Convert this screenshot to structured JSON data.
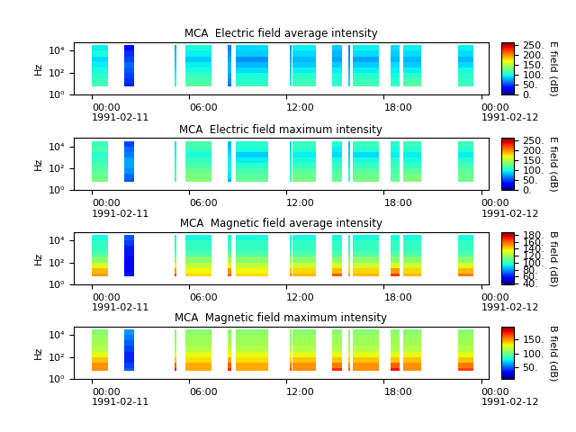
{
  "chart_data": [
    {
      "type": "heatmap",
      "title": "MCA  Electric field average intensity",
      "y_label": "Hz",
      "log": "y",
      "xlim": [
        -1.1,
        24.45
      ],
      "xticks": [
        {
          "value": 0,
          "label": "00:00\n1991-02-11"
        },
        {
          "value": 6,
          "label": "06:00"
        },
        {
          "value": 12,
          "label": "12:00"
        },
        {
          "value": 18,
          "label": "18:00"
        },
        {
          "value": 24,
          "label": "00:00\n1991-02-12"
        }
      ],
      "ylim": [
        1,
        60000
      ],
      "yticks": [
        {
          "value": 1,
          "label": "10⁰"
        },
        {
          "value": 100,
          "label": "10²"
        },
        {
          "value": 10000,
          "label": "10⁴"
        }
      ],
      "segments": [
        [
          0.0,
          1.0
        ],
        [
          2.0,
          2.6
        ],
        [
          5.1,
          5.2
        ],
        [
          5.8,
          7.4
        ],
        [
          8.4,
          8.6
        ],
        [
          8.9,
          10.9
        ],
        [
          12.2,
          12.3
        ],
        [
          12.4,
          13.8
        ],
        [
          14.8,
          15.4
        ],
        [
          15.8,
          15.9
        ],
        [
          16.1,
          17.7
        ],
        [
          18.4,
          19.0
        ],
        [
          19.2,
          20.3
        ],
        [
          22.6,
          23.5
        ]
      ],
      "y_edges": [
        5.6,
        10,
        31.6,
        100,
        316,
        1000,
        3162,
        10000,
        31623
      ],
      "cells": [
        [
          115,
          110,
          105,
          100,
          95,
          90,
          100,
          95
        ],
        [
          40,
          45,
          50,
          55,
          60,
          50,
          45,
          35
        ],
        [
          100,
          100,
          95,
          90,
          85,
          80,
          80,
          75
        ],
        [
          120,
          115,
          110,
          100,
          95,
          85,
          95,
          100
        ],
        [
          60,
          70,
          75,
          80,
          80,
          75,
          70,
          65
        ],
        [
          110,
          105,
          100,
          90,
          80,
          70,
          85,
          90
        ],
        [
          95,
          95,
          90,
          85,
          80,
          75,
          75,
          70
        ],
        [
          115,
          110,
          105,
          95,
          85,
          80,
          90,
          95
        ],
        [
          110,
          105,
          100,
          95,
          85,
          75,
          80,
          85
        ],
        [
          90,
          90,
          85,
          80,
          75,
          70,
          70,
          65
        ],
        [
          115,
          110,
          105,
          95,
          85,
          75,
          90,
          95
        ],
        [
          110,
          105,
          100,
          95,
          90,
          80,
          85,
          90
        ],
        [
          120,
          115,
          105,
          95,
          85,
          80,
          90,
          95
        ],
        [
          110,
          110,
          105,
          100,
          90,
          80,
          90,
          95
        ]
      ],
      "colorbar_label": "E field (dB)",
      "colorbar_range": [
        0,
        262
      ],
      "colorbar_ticks": [
        {
          "value": 0,
          "label": "0."
        },
        {
          "value": 50,
          "label": "50."
        },
        {
          "value": 100,
          "label": "100."
        },
        {
          "value": 150,
          "label": "150."
        },
        {
          "value": 200,
          "label": "200."
        },
        {
          "value": 250,
          "label": "250."
        }
      ]
    },
    {
      "type": "heatmap",
      "title": "MCA  Electric field maximum intensity",
      "y_label": "Hz",
      "log": "y",
      "xlim": [
        -1.1,
        24.45
      ],
      "xticks": [
        {
          "value": 0,
          "label": "00:00\n1991-02-11"
        },
        {
          "value": 6,
          "label": "06:00"
        },
        {
          "value": 12,
          "label": "12:00"
        },
        {
          "value": 18,
          "label": "18:00"
        },
        {
          "value": 24,
          "label": "00:00\n1991-02-12"
        }
      ],
      "ylim": [
        1,
        60000
      ],
      "yticks": [
        {
          "value": 1,
          "label": "10⁰"
        },
        {
          "value": 100,
          "label": "10²"
        },
        {
          "value": 10000,
          "label": "10⁴"
        }
      ],
      "segments": [
        [
          0.0,
          1.0
        ],
        [
          2.0,
          2.6
        ],
        [
          5.1,
          5.2
        ],
        [
          5.8,
          7.4
        ],
        [
          8.4,
          8.6
        ],
        [
          8.9,
          10.9
        ],
        [
          12.2,
          12.3
        ],
        [
          12.4,
          13.8
        ],
        [
          14.8,
          15.4
        ],
        [
          15.8,
          15.9
        ],
        [
          16.1,
          17.7
        ],
        [
          18.4,
          19.0
        ],
        [
          19.2,
          20.3
        ],
        [
          22.6,
          23.5
        ]
      ],
      "y_edges": [
        5.6,
        10,
        31.6,
        100,
        316,
        1000,
        3162,
        10000,
        31623
      ],
      "cells": [
        [
          130,
          125,
          120,
          115,
          110,
          105,
          115,
          110
        ],
        [
          55,
          60,
          70,
          75,
          75,
          65,
          60,
          50
        ],
        [
          115,
          115,
          110,
          105,
          100,
          95,
          95,
          90
        ],
        [
          135,
          130,
          125,
          115,
          110,
          100,
          110,
          115
        ],
        [
          80,
          90,
          95,
          95,
          95,
          90,
          85,
          80
        ],
        [
          125,
          120,
          115,
          105,
          95,
          85,
          100,
          105
        ],
        [
          110,
          110,
          105,
          100,
          95,
          90,
          90,
          85
        ],
        [
          130,
          125,
          120,
          110,
          100,
          95,
          105,
          110
        ],
        [
          125,
          120,
          115,
          110,
          100,
          90,
          95,
          100
        ],
        [
          105,
          105,
          100,
          95,
          90,
          85,
          85,
          80
        ],
        [
          130,
          125,
          120,
          110,
          100,
          90,
          105,
          110
        ],
        [
          125,
          120,
          115,
          110,
          105,
          95,
          100,
          105
        ],
        [
          135,
          130,
          120,
          110,
          100,
          95,
          105,
          110
        ],
        [
          125,
          125,
          120,
          115,
          105,
          95,
          105,
          110
        ]
      ],
      "colorbar_label": "E field (dB)",
      "colorbar_range": [
        0,
        262
      ],
      "colorbar_ticks": [
        {
          "value": 0,
          "label": "0."
        },
        {
          "value": 50,
          "label": "50."
        },
        {
          "value": 100,
          "label": "100."
        },
        {
          "value": 150,
          "label": "150."
        },
        {
          "value": 200,
          "label": "200."
        },
        {
          "value": 250,
          "label": "250."
        }
      ]
    },
    {
      "type": "heatmap",
      "title": "MCA  Magnetic field average intensity",
      "y_label": "Hz",
      "log": "y",
      "xlim": [
        -1.1,
        24.45
      ],
      "xticks": [
        {
          "value": 0,
          "label": "00:00\n1991-02-11"
        },
        {
          "value": 6,
          "label": "06:00"
        },
        {
          "value": 12,
          "label": "12:00"
        },
        {
          "value": 18,
          "label": "18:00"
        },
        {
          "value": 24,
          "label": "00:00\n1991-02-12"
        }
      ],
      "ylim": [
        1,
        60000
      ],
      "yticks": [
        {
          "value": 1,
          "label": "10⁰"
        },
        {
          "value": 100,
          "label": "10²"
        },
        {
          "value": 10000,
          "label": "10⁴"
        }
      ],
      "segments": [
        [
          0.0,
          1.0
        ],
        [
          2.0,
          2.6
        ],
        [
          5.1,
          5.2
        ],
        [
          5.8,
          7.4
        ],
        [
          8.4,
          8.6
        ],
        [
          8.9,
          10.9
        ],
        [
          12.2,
          12.3
        ],
        [
          12.4,
          13.8
        ],
        [
          14.8,
          15.4
        ],
        [
          15.8,
          15.9
        ],
        [
          16.1,
          17.7
        ],
        [
          18.4,
          19.0
        ],
        [
          19.2,
          20.3
        ],
        [
          22.6,
          23.5
        ]
      ],
      "y_edges": [
        5.6,
        10,
        31.6,
        100,
        316,
        1000,
        3162,
        10000,
        31623
      ],
      "cells": [
        [
          150,
          145,
          130,
          115,
          105,
          100,
          100,
          95
        ],
        [
          60,
          55,
          55,
          55,
          60,
          60,
          65,
          70
        ],
        [
          165,
          150,
          130,
          115,
          105,
          100,
          95,
          95
        ],
        [
          140,
          135,
          125,
          115,
          105,
          100,
          100,
          95
        ],
        [
          160,
          150,
          135,
          120,
          110,
          100,
          100,
          95
        ],
        [
          140,
          135,
          125,
          115,
          105,
          100,
          100,
          95
        ],
        [
          155,
          145,
          130,
          115,
          105,
          100,
          95,
          95
        ],
        [
          145,
          140,
          128,
          115,
          105,
          100,
          100,
          95
        ],
        [
          160,
          145,
          130,
          115,
          105,
          100,
          100,
          95
        ],
        [
          150,
          140,
          128,
          115,
          105,
          100,
          95,
          95
        ],
        [
          145,
          140,
          128,
          115,
          105,
          100,
          100,
          95
        ],
        [
          165,
          150,
          130,
          115,
          105,
          100,
          100,
          95
        ],
        [
          145,
          140,
          128,
          115,
          105,
          100,
          100,
          95
        ],
        [
          155,
          145,
          130,
          115,
          105,
          100,
          100,
          95
        ]
      ],
      "colorbar_label": "B field (dB)",
      "colorbar_range": [
        38,
        188
      ],
      "colorbar_ticks": [
        {
          "value": 40,
          "label": "40."
        },
        {
          "value": 60,
          "label": "60."
        },
        {
          "value": 80,
          "label": "80."
        },
        {
          "value": 100,
          "label": "100."
        },
        {
          "value": 120,
          "label": "120."
        },
        {
          "value": 140,
          "label": "140."
        },
        {
          "value": 160,
          "label": "160."
        },
        {
          "value": 180,
          "label": "180."
        }
      ]
    },
    {
      "type": "heatmap",
      "title": "MCA  Magnetic field maximum intensity",
      "y_label": "Hz",
      "log": "y",
      "xlim": [
        -1.1,
        24.45
      ],
      "xticks": [
        {
          "value": 0,
          "label": "00:00\n1991-02-11"
        },
        {
          "value": 6,
          "label": "06:00"
        },
        {
          "value": 12,
          "label": "12:00"
        },
        {
          "value": 18,
          "label": "18:00"
        },
        {
          "value": 24,
          "label": "00:00\n1991-02-12"
        }
      ],
      "ylim": [
        1,
        60000
      ],
      "yticks": [
        {
          "value": 1,
          "label": "10⁰"
        },
        {
          "value": 100,
          "label": "10²"
        },
        {
          "value": 10000,
          "label": "10⁴"
        }
      ],
      "segments": [
        [
          0.0,
          1.0
        ],
        [
          2.0,
          2.6
        ],
        [
          5.1,
          5.2
        ],
        [
          5.8,
          7.4
        ],
        [
          8.4,
          8.6
        ],
        [
          8.9,
          10.9
        ],
        [
          12.2,
          12.3
        ],
        [
          12.4,
          13.8
        ],
        [
          14.8,
          15.4
        ],
        [
          15.8,
          15.9
        ],
        [
          16.1,
          17.7
        ],
        [
          18.4,
          19.0
        ],
        [
          19.2,
          20.3
        ],
        [
          22.6,
          23.5
        ]
      ],
      "y_edges": [
        5.6,
        10,
        31.6,
        100,
        316,
        1000,
        3162,
        10000,
        31623
      ],
      "cells": [
        [
          150,
          150,
          140,
          125,
          115,
          110,
          110,
          105
        ],
        [
          50,
          45,
          40,
          40,
          45,
          50,
          55,
          60
        ],
        [
          175,
          160,
          140,
          125,
          115,
          110,
          105,
          105
        ],
        [
          145,
          145,
          135,
          125,
          115,
          110,
          110,
          105
        ],
        [
          170,
          160,
          145,
          130,
          120,
          110,
          110,
          105
        ],
        [
          145,
          145,
          135,
          125,
          115,
          110,
          110,
          105
        ],
        [
          165,
          155,
          140,
          125,
          115,
          110,
          105,
          105
        ],
        [
          150,
          150,
          140,
          125,
          115,
          110,
          110,
          105
        ],
        [
          170,
          155,
          140,
          125,
          115,
          110,
          110,
          105
        ],
        [
          160,
          150,
          138,
          125,
          115,
          110,
          105,
          105
        ],
        [
          150,
          150,
          140,
          125,
          115,
          110,
          110,
          105
        ],
        [
          175,
          160,
          140,
          125,
          115,
          110,
          110,
          105
        ],
        [
          150,
          150,
          140,
          125,
          115,
          110,
          110,
          105
        ],
        [
          165,
          155,
          140,
          125,
          115,
          110,
          110,
          105
        ]
      ],
      "colorbar_label": "B field (dB)",
      "colorbar_range": [
        10,
        195
      ],
      "colorbar_ticks": [
        {
          "value": 50,
          "label": "50."
        },
        {
          "value": 100,
          "label": "100."
        },
        {
          "value": 150,
          "label": "150."
        }
      ]
    }
  ]
}
